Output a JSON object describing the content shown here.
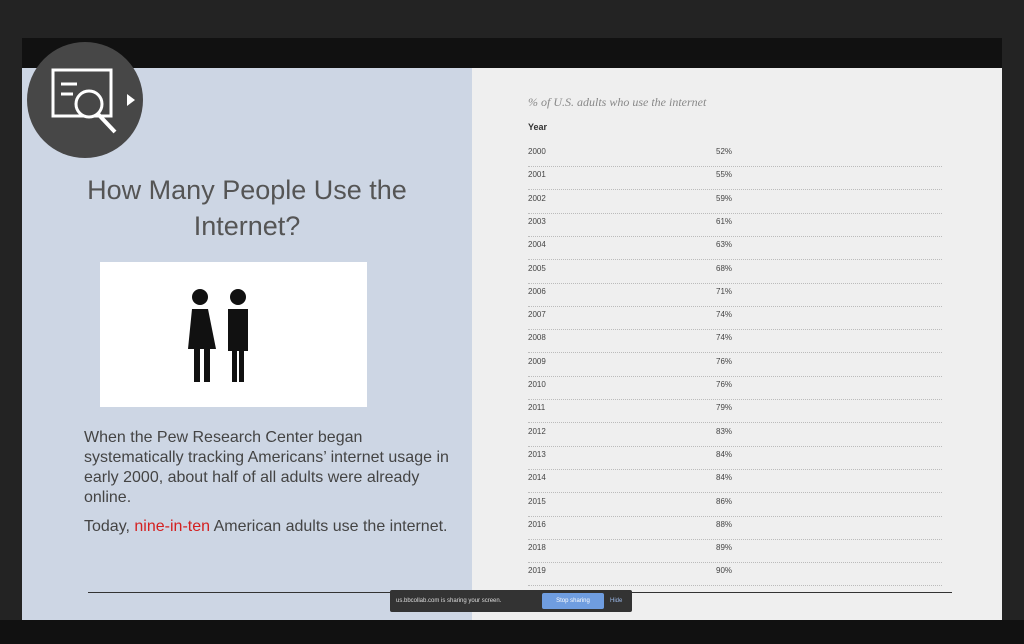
{
  "slide": {
    "title": "How Many People Use the Internet?",
    "paragraph1": "When the Pew Research Center began systematically tracking Americans’ internet usage in early 2000, about half of all adults were already online.",
    "paragraph2": [
      "Today, ",
      "nine-in-ten",
      " American adults use the internet."
    ]
  },
  "table": {
    "caption": "% of U.S. adults who use the internet",
    "header": "Year",
    "rows": [
      [
        "2000",
        "52%"
      ],
      [
        "2001",
        "55%"
      ],
      [
        "2002",
        "59%"
      ],
      [
        "2003",
        "61%"
      ],
      [
        "2004",
        "63%"
      ],
      [
        "2005",
        "68%"
      ],
      [
        "2006",
        "71%"
      ],
      [
        "2007",
        "74%"
      ],
      [
        "2008",
        "74%"
      ],
      [
        "2009",
        "76%"
      ],
      [
        "2010",
        "76%"
      ],
      [
        "2011",
        "79%"
      ],
      [
        "2012",
        "83%"
      ],
      [
        "2013",
        "84%"
      ],
      [
        "2014",
        "84%"
      ],
      [
        "2015",
        "86%"
      ],
      [
        "2016",
        "88%"
      ],
      [
        "2018",
        "89%"
      ],
      [
        "2019",
        "90%"
      ]
    ]
  },
  "share_bar": {
    "message": "us.bbcollab.com is sharing your screen.",
    "stop": "Stop sharing",
    "hide": "Hide"
  }
}
